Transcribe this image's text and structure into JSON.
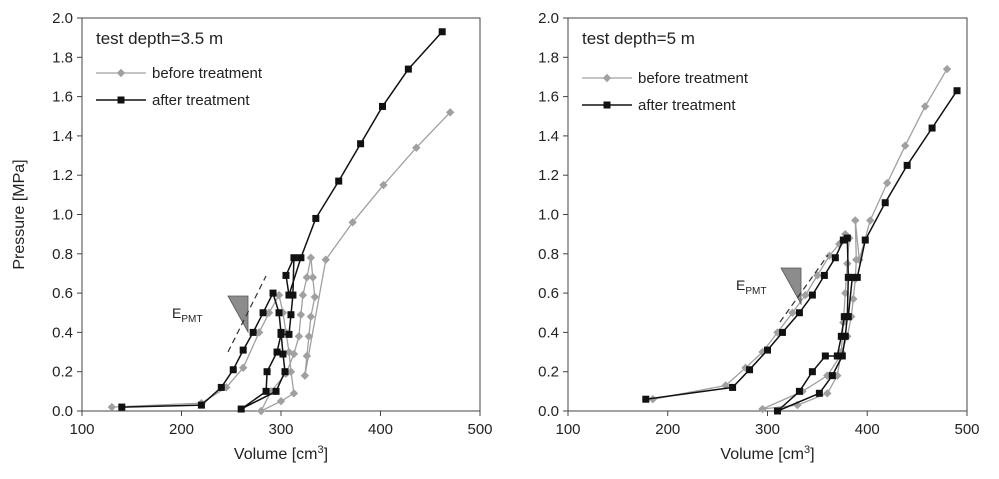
{
  "chart_data": [
    {
      "type": "line",
      "title": "test depth=3.5 m",
      "xlabel": "Volume [cm3]",
      "ylabel": "Pressure [MPa]",
      "xlim": [
        100,
        500
      ],
      "ylim": [
        0,
        2.0
      ],
      "xticks": [
        "100",
        "200",
        "300",
        "400",
        "500"
      ],
      "yticks": [
        "0.0",
        "0.2",
        "0.4",
        "0.6",
        "0.8",
        "1.0",
        "1.2",
        "1.4",
        "1.6",
        "1.8",
        "2.0"
      ],
      "grid": false,
      "legend_position": "top-left",
      "annotation": {
        "main": "E",
        "sub": "PMT"
      },
      "series": [
        {
          "name": "before treatment",
          "color": "#a0a0a0",
          "marker": "diamond",
          "points": [
            [
              130,
              0.02
            ],
            [
              220,
              0.04
            ],
            [
              245,
              0.12
            ],
            [
              262,
              0.22
            ],
            [
              278,
              0.4
            ],
            [
              288,
              0.5
            ],
            [
              298,
              0.59
            ],
            [
              302,
              0.5
            ],
            [
              305,
              0.4
            ],
            [
              308,
              0.3
            ],
            [
              310,
              0.2
            ],
            [
              313,
              0.09
            ],
            [
              300,
              0.05
            ],
            [
              280,
              0.0
            ],
            [
              290,
              0.1
            ],
            [
              305,
              0.19
            ],
            [
              313,
              0.29
            ],
            [
              318,
              0.38
            ],
            [
              320,
              0.49
            ],
            [
              322,
              0.59
            ],
            [
              326,
              0.68
            ],
            [
              330,
              0.78
            ],
            [
              332,
              0.68
            ],
            [
              334,
              0.58
            ],
            [
              330,
              0.48
            ],
            [
              328,
              0.38
            ],
            [
              326,
              0.28
            ],
            [
              324,
              0.18
            ],
            [
              345,
              0.77
            ],
            [
              372,
              0.96
            ],
            [
              403,
              1.15
            ],
            [
              436,
              1.34
            ],
            [
              470,
              1.52
            ]
          ]
        },
        {
          "name": "after treatment",
          "color": "#111111",
          "marker": "square",
          "points": [
            [
              140,
              0.02
            ],
            [
              220,
              0.03
            ],
            [
              240,
              0.12
            ],
            [
              252,
              0.21
            ],
            [
              262,
              0.31
            ],
            [
              272,
              0.4
            ],
            [
              282,
              0.5
            ],
            [
              292,
              0.6
            ],
            [
              298,
              0.5
            ],
            [
              300,
              0.4
            ],
            [
              302,
              0.29
            ],
            [
              304,
              0.2
            ],
            [
              295,
              0.1
            ],
            [
              260,
              0.01
            ],
            [
              285,
              0.1
            ],
            [
              286,
              0.2
            ],
            [
              296,
              0.3
            ],
            [
              300,
              0.39
            ],
            [
              308,
              0.39
            ],
            [
              310,
              0.49
            ],
            [
              312,
              0.59
            ],
            [
              313,
              0.78
            ],
            [
              305,
              0.69
            ],
            [
              308,
              0.59
            ],
            [
              320,
              0.78
            ],
            [
              335,
              0.98
            ],
            [
              358,
              1.17
            ],
            [
              380,
              1.36
            ],
            [
              402,
              1.55
            ],
            [
              428,
              1.74
            ],
            [
              462,
              1.93
            ]
          ]
        }
      ]
    },
    {
      "type": "line",
      "title": "test depth=5 m",
      "xlabel": "Volume [cm3]",
      "ylabel": "",
      "xlim": [
        100,
        500
      ],
      "ylim": [
        0,
        2.0
      ],
      "xticks": [
        "100",
        "200",
        "300",
        "400",
        "500"
      ],
      "yticks": [
        "0.0",
        "0.2",
        "0.4",
        "0.6",
        "0.8",
        "1.0",
        "1.2",
        "1.4",
        "1.6",
        "1.8",
        "2.0"
      ],
      "grid": false,
      "legend_position": "top-left",
      "annotation": {
        "main": "E",
        "sub": "PMT"
      },
      "series": [
        {
          "name": "before treatment",
          "color": "#a0a0a0",
          "marker": "diamond",
          "points": [
            [
              185,
              0.06
            ],
            [
              258,
              0.13
            ],
            [
              278,
              0.22
            ],
            [
              295,
              0.3
            ],
            [
              310,
              0.4
            ],
            [
              325,
              0.5
            ],
            [
              338,
              0.59
            ],
            [
              350,
              0.69
            ],
            [
              362,
              0.79
            ],
            [
              372,
              0.85
            ],
            [
              378,
              0.9
            ],
            [
              382,
              0.88
            ],
            [
              380,
              0.75
            ],
            [
              378,
              0.6
            ],
            [
              376,
              0.45
            ],
            [
              374,
              0.3
            ],
            [
              370,
              0.18
            ],
            [
              360,
              0.09
            ],
            [
              330,
              0.03
            ],
            [
              295,
              0.01
            ],
            [
              335,
              0.1
            ],
            [
              360,
              0.18
            ],
            [
              373,
              0.28
            ],
            [
              380,
              0.38
            ],
            [
              384,
              0.48
            ],
            [
              386,
              0.57
            ],
            [
              388,
              0.67
            ],
            [
              389,
              0.77
            ],
            [
              388,
              0.97
            ],
            [
              392,
              0.77
            ],
            [
              403,
              0.97
            ],
            [
              420,
              1.16
            ],
            [
              438,
              1.35
            ],
            [
              458,
              1.55
            ],
            [
              480,
              1.74
            ]
          ]
        },
        {
          "name": "after treatment",
          "color": "#111111",
          "marker": "square",
          "points": [
            [
              178,
              0.06
            ],
            [
              265,
              0.12
            ],
            [
              282,
              0.21
            ],
            [
              300,
              0.31
            ],
            [
              315,
              0.4
            ],
            [
              332,
              0.5
            ],
            [
              345,
              0.59
            ],
            [
              357,
              0.69
            ],
            [
              368,
              0.78
            ],
            [
              376,
              0.87
            ],
            [
              380,
              0.88
            ],
            [
              381,
              0.68
            ],
            [
              380,
              0.48
            ],
            [
              378,
              0.38
            ],
            [
              375,
              0.28
            ],
            [
              365,
              0.18
            ],
            [
              352,
              0.09
            ],
            [
              310,
              0.0
            ],
            [
              332,
              0.1
            ],
            [
              345,
              0.2
            ],
            [
              358,
              0.28
            ],
            [
              370,
              0.28
            ],
            [
              374,
              0.38
            ],
            [
              377,
              0.48
            ],
            [
              381,
              0.48
            ],
            [
              385,
              0.68
            ],
            [
              390,
              0.68
            ],
            [
              398,
              0.87
            ],
            [
              418,
              1.06
            ],
            [
              440,
              1.25
            ],
            [
              465,
              1.44
            ],
            [
              490,
              1.63
            ]
          ]
        }
      ]
    }
  ]
}
